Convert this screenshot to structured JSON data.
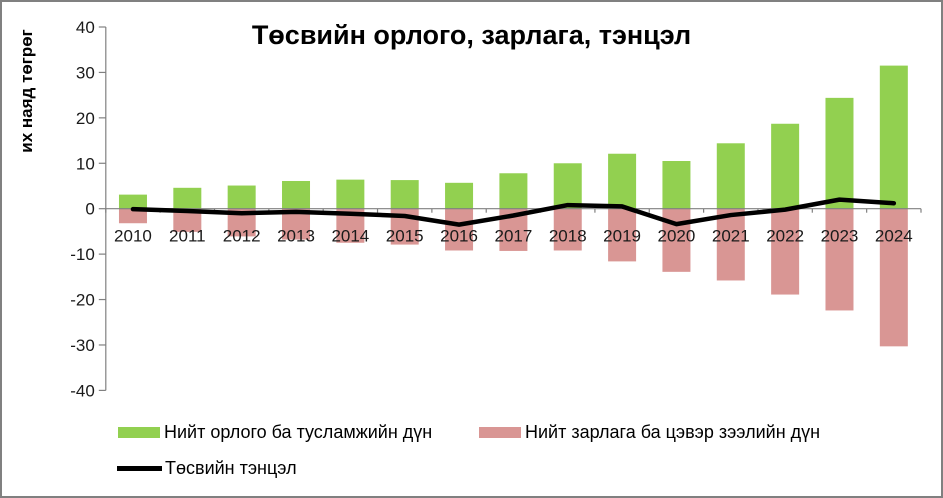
{
  "chart_data": {
    "type": "bar",
    "subtype": "bar-and-line-combo",
    "title": "Төсвийн орлого, зарлага, тэнцэл",
    "xlabel": "",
    "ylabel": "их наяд төгрөг",
    "ylim": [
      -40,
      40
    ],
    "ytick_step": 10,
    "yticks": [
      40,
      30,
      20,
      10,
      0,
      -10,
      -20,
      -30,
      -40
    ],
    "grid": false,
    "legend_position": "bottom",
    "categories": [
      "2010",
      "2011",
      "2012",
      "2013",
      "2014",
      "2015",
      "2016",
      "2017",
      "2018",
      "2019",
      "2020",
      "2021",
      "2022",
      "2023",
      "2024"
    ],
    "series": [
      {
        "name": "Нийт орлого ба тусламжийн дүн",
        "type": "bar",
        "color": "#92D050",
        "values": [
          3.1,
          4.6,
          5.1,
          6.1,
          6.4,
          6.3,
          5.7,
          7.8,
          10.0,
          12.1,
          10.5,
          14.4,
          18.7,
          24.4,
          31.5
        ]
      },
      {
        "name": "Нийт зарлага ба цэвэр зээлийн дүн",
        "type": "bar",
        "color": "#D99694",
        "values": [
          -3.2,
          -5.1,
          -6.1,
          -6.8,
          -7.5,
          -7.9,
          -9.2,
          -9.3,
          -9.2,
          -11.6,
          -13.9,
          -15.8,
          -18.9,
          -22.4,
          -30.3
        ]
      },
      {
        "name": "Төсвийн тэнцэл",
        "type": "line",
        "color": "#000000",
        "values": [
          -0.1,
          -0.5,
          -1.0,
          -0.7,
          -1.1,
          -1.6,
          -3.5,
          -1.5,
          0.8,
          0.5,
          -3.4,
          -1.4,
          -0.2,
          2.0,
          1.2
        ]
      }
    ],
    "axis_color": "#808080",
    "text_color": "#1a1a1a"
  }
}
